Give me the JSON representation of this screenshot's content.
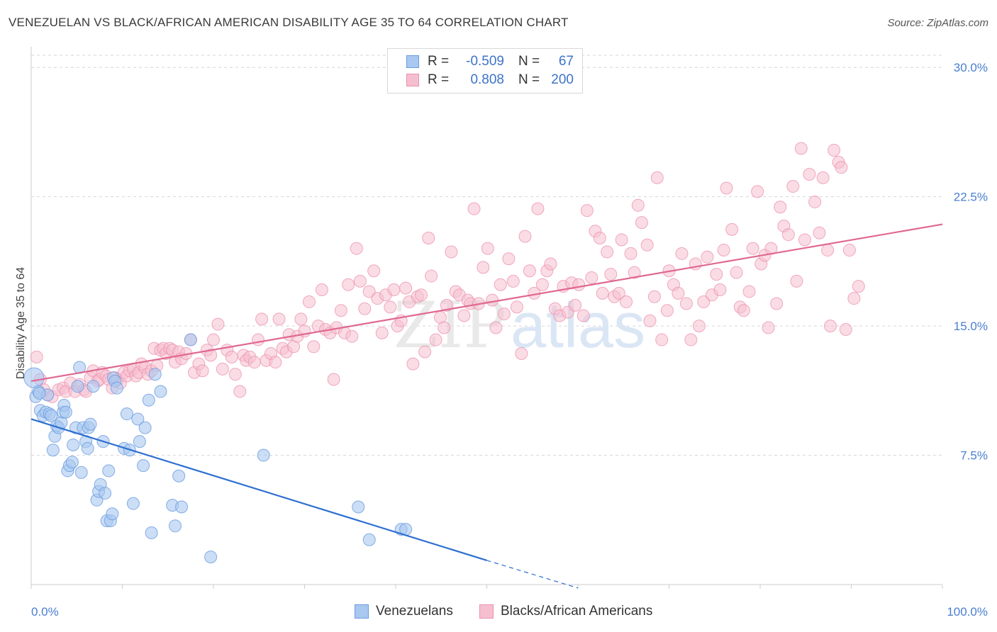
{
  "title": "VENEZUELAN VS BLACK/AFRICAN AMERICAN DISABILITY AGE 35 TO 64 CORRELATION CHART",
  "source": "Source: ZipAtlas.com",
  "watermark": "ZIPatlas",
  "legend_top": {
    "rows": [
      {
        "r_label": "R =",
        "r_value": "-0.509",
        "n_label": "N =",
        "n_value": "67"
      },
      {
        "r_label": "R =",
        "r_value": "0.808",
        "n_label": "N =",
        "n_value": "200"
      }
    ]
  },
  "legend_bottom": {
    "items": [
      "Venezuelans",
      "Blacks/African Americans"
    ]
  },
  "colors": {
    "blue_fill": "#a9c8f0",
    "blue_stroke": "#6a9be0",
    "blue_line": "#2e6fd0",
    "pink_fill": "#f6bfd0",
    "pink_stroke": "#ec8fae",
    "pink_line": "#e06890",
    "tick_text": "#4a7fd0",
    "grid": "#d6d6d6"
  },
  "chart_data": {
    "type": "scatter",
    "title": "VENEZUELAN VS BLACK/AFRICAN AMERICAN DISABILITY AGE 35 TO 64 CORRELATION CHART",
    "xlabel": "",
    "ylabel": "Disability Age 35 to 64",
    "xlim": [
      0,
      100
    ],
    "ylim": [
      0,
      31.2
    ],
    "x_tick_labels": [
      "0.0%",
      "100.0%"
    ],
    "y_ticks": [
      7.5,
      15.0,
      22.5,
      30.0
    ],
    "y_tick_labels": [
      "7.5%",
      "15.0%",
      "22.5%",
      "30.0%"
    ],
    "grid": true,
    "legend_position": "top-center",
    "series": [
      {
        "name": "Venezuelans",
        "color": "#a9c8f0",
        "R": -0.509,
        "N": 67,
        "trend": {
          "x": [
            0,
            50
          ],
          "y": [
            9.6,
            1.4
          ],
          "dashed_to": [
            60,
            -0.2
          ]
        },
        "points": [
          [
            0.3,
            12.0
          ],
          [
            0.5,
            10.9
          ],
          [
            0.8,
            11.2
          ],
          [
            1.0,
            10.1
          ],
          [
            1.3,
            9.8
          ],
          [
            1.6,
            10.0
          ],
          [
            1.8,
            11.0
          ],
          [
            2.0,
            9.9
          ],
          [
            2.2,
            9.8
          ],
          [
            2.4,
            7.8
          ],
          [
            2.6,
            8.6
          ],
          [
            2.8,
            9.2
          ],
          [
            3.0,
            9.1
          ],
          [
            3.3,
            9.4
          ],
          [
            3.5,
            10.0
          ],
          [
            3.6,
            10.4
          ],
          [
            3.8,
            10.0
          ],
          [
            4.0,
            6.6
          ],
          [
            4.2,
            6.9
          ],
          [
            4.5,
            7.1
          ],
          [
            4.6,
            8.1
          ],
          [
            4.9,
            9.1
          ],
          [
            5.1,
            11.5
          ],
          [
            5.3,
            12.6
          ],
          [
            5.5,
            6.5
          ],
          [
            5.7,
            9.1
          ],
          [
            6.0,
            8.3
          ],
          [
            6.2,
            7.9
          ],
          [
            6.3,
            9.1
          ],
          [
            6.5,
            9.3
          ],
          [
            6.8,
            11.5
          ],
          [
            7.2,
            4.9
          ],
          [
            7.4,
            5.4
          ],
          [
            7.6,
            5.8
          ],
          [
            7.9,
            8.3
          ],
          [
            8.1,
            5.3
          ],
          [
            8.3,
            3.7
          ],
          [
            8.5,
            6.6
          ],
          [
            8.7,
            3.7
          ],
          [
            8.9,
            4.1
          ],
          [
            9.0,
            12.0
          ],
          [
            9.2,
            11.8
          ],
          [
            9.4,
            11.4
          ],
          [
            10.2,
            7.9
          ],
          [
            10.5,
            9.9
          ],
          [
            10.8,
            7.8
          ],
          [
            11.2,
            4.7
          ],
          [
            11.7,
            9.6
          ],
          [
            11.9,
            8.3
          ],
          [
            12.3,
            6.9
          ],
          [
            12.5,
            9.1
          ],
          [
            12.9,
            10.7
          ],
          [
            13.2,
            3.0
          ],
          [
            13.6,
            12.2
          ],
          [
            14.2,
            11.2
          ],
          [
            15.5,
            4.6
          ],
          [
            15.8,
            3.4
          ],
          [
            16.2,
            6.3
          ],
          [
            16.5,
            4.5
          ],
          [
            17.5,
            14.2
          ],
          [
            19.7,
            1.6
          ],
          [
            25.5,
            7.5
          ],
          [
            35.9,
            4.5
          ],
          [
            37.1,
            2.6
          ],
          [
            40.6,
            3.2
          ],
          [
            41.1,
            3.2
          ],
          [
            0.9,
            11.1
          ]
        ]
      },
      {
        "name": "Blacks/African Americans",
        "color": "#f6bfd0",
        "R": 0.808,
        "N": 200,
        "trend": {
          "x": [
            0,
            100
          ],
          "y": [
            11.8,
            20.9
          ]
        },
        "points": [
          [
            0.6,
            13.2
          ],
          [
            1.0,
            11.9
          ],
          [
            1.4,
            11.3
          ],
          [
            1.8,
            11.0
          ],
          [
            2.3,
            10.9
          ],
          [
            3.0,
            11.3
          ],
          [
            3.5,
            11.4
          ],
          [
            3.8,
            11.2
          ],
          [
            4.3,
            11.7
          ],
          [
            4.8,
            11.2
          ],
          [
            5.3,
            11.6
          ],
          [
            5.8,
            11.3
          ],
          [
            6.0,
            11.2
          ],
          [
            6.5,
            12.0
          ],
          [
            6.8,
            12.4
          ],
          [
            7.3,
            11.8
          ],
          [
            7.5,
            11.9
          ],
          [
            7.8,
            12.3
          ],
          [
            8.2,
            12.1
          ],
          [
            8.5,
            11.9
          ],
          [
            8.9,
            11.4
          ],
          [
            9.2,
            12.0
          ],
          [
            9.5,
            11.9
          ],
          [
            9.8,
            11.7
          ],
          [
            10.2,
            12.3
          ],
          [
            10.5,
            12.1
          ],
          [
            10.8,
            12.4
          ],
          [
            11.2,
            12.5
          ],
          [
            11.5,
            12.1
          ],
          [
            11.8,
            12.3
          ],
          [
            12.1,
            12.8
          ],
          [
            12.5,
            12.6
          ],
          [
            12.8,
            12.2
          ],
          [
            13.2,
            12.4
          ],
          [
            13.5,
            13.7
          ],
          [
            13.8,
            12.7
          ],
          [
            14.2,
            13.6
          ],
          [
            14.5,
            13.7
          ],
          [
            14.8,
            13.4
          ],
          [
            15.2,
            13.7
          ],
          [
            15.5,
            13.6
          ],
          [
            15.8,
            12.9
          ],
          [
            16.2,
            13.5
          ],
          [
            16.5,
            13.1
          ],
          [
            17.0,
            13.4
          ],
          [
            17.5,
            14.2
          ],
          [
            17.9,
            12.3
          ],
          [
            18.4,
            12.8
          ],
          [
            18.8,
            12.4
          ],
          [
            19.3,
            13.6
          ],
          [
            19.7,
            13.3
          ],
          [
            20.0,
            14.2
          ],
          [
            20.5,
            15.1
          ],
          [
            21.0,
            12.5
          ],
          [
            21.5,
            13.6
          ],
          [
            22.0,
            13.2
          ],
          [
            22.4,
            12.2
          ],
          [
            22.9,
            11.2
          ],
          [
            23.3,
            13.3
          ],
          [
            23.6,
            13.0
          ],
          [
            24.0,
            13.2
          ],
          [
            24.5,
            12.9
          ],
          [
            24.9,
            14.2
          ],
          [
            25.3,
            15.4
          ],
          [
            25.8,
            13.0
          ],
          [
            26.3,
            13.4
          ],
          [
            26.8,
            12.9
          ],
          [
            27.2,
            15.4
          ],
          [
            27.6,
            13.7
          ],
          [
            28.0,
            13.5
          ],
          [
            28.3,
            14.5
          ],
          [
            28.8,
            13.8
          ],
          [
            29.2,
            14.4
          ],
          [
            29.6,
            15.4
          ],
          [
            30.0,
            14.7
          ],
          [
            30.5,
            16.4
          ],
          [
            31.0,
            13.8
          ],
          [
            31.5,
            15.0
          ],
          [
            31.9,
            17.1
          ],
          [
            32.3,
            14.8
          ],
          [
            32.8,
            14.6
          ],
          [
            33.2,
            11.9
          ],
          [
            33.5,
            14.9
          ],
          [
            34.0,
            15.9
          ],
          [
            34.4,
            14.6
          ],
          [
            34.8,
            17.4
          ],
          [
            35.2,
            14.4
          ],
          [
            35.7,
            19.5
          ],
          [
            36.1,
            17.6
          ],
          [
            36.6,
            16.0
          ],
          [
            37.1,
            17.0
          ],
          [
            37.6,
            18.2
          ],
          [
            38.0,
            16.6
          ],
          [
            38.5,
            14.6
          ],
          [
            38.9,
            16.8
          ],
          [
            39.4,
            16.1
          ],
          [
            39.8,
            17.1
          ],
          [
            40.2,
            15.0
          ],
          [
            40.6,
            15.3
          ],
          [
            41.1,
            17.2
          ],
          [
            41.5,
            16.4
          ],
          [
            41.9,
            12.8
          ],
          [
            42.4,
            16.7
          ],
          [
            42.8,
            16.8
          ],
          [
            43.2,
            13.5
          ],
          [
            43.6,
            20.1
          ],
          [
            43.9,
            17.9
          ],
          [
            44.4,
            14.2
          ],
          [
            44.9,
            15.5
          ],
          [
            45.3,
            14.9
          ],
          [
            45.6,
            16.2
          ],
          [
            46.1,
            19.3
          ],
          [
            46.6,
            17.0
          ],
          [
            47.0,
            16.8
          ],
          [
            47.5,
            15.6
          ],
          [
            47.9,
            16.5
          ],
          [
            48.2,
            16.3
          ],
          [
            48.6,
            21.8
          ],
          [
            49.1,
            16.3
          ],
          [
            49.6,
            18.4
          ],
          [
            50.1,
            19.5
          ],
          [
            50.6,
            16.5
          ],
          [
            51.0,
            14.9
          ],
          [
            51.5,
            17.4
          ],
          [
            51.9,
            15.7
          ],
          [
            52.4,
            18.9
          ],
          [
            52.9,
            17.6
          ],
          [
            53.3,
            16.1
          ],
          [
            53.8,
            13.4
          ],
          [
            54.2,
            20.2
          ],
          [
            54.7,
            18.2
          ],
          [
            55.2,
            16.9
          ],
          [
            55.6,
            21.8
          ],
          [
            56.1,
            17.4
          ],
          [
            56.6,
            18.2
          ],
          [
            57.0,
            18.6
          ],
          [
            57.5,
            16.0
          ],
          [
            58.0,
            15.6
          ],
          [
            58.4,
            17.3
          ],
          [
            58.9,
            15.8
          ],
          [
            59.3,
            17.5
          ],
          [
            59.7,
            16.2
          ],
          [
            60.1,
            17.4
          ],
          [
            60.6,
            15.6
          ],
          [
            61.0,
            21.7
          ],
          [
            61.5,
            17.8
          ],
          [
            61.9,
            20.5
          ],
          [
            62.4,
            20.1
          ],
          [
            62.7,
            16.9
          ],
          [
            63.2,
            19.3
          ],
          [
            63.6,
            18.0
          ],
          [
            64.0,
            16.7
          ],
          [
            64.5,
            16.9
          ],
          [
            64.8,
            20.0
          ],
          [
            65.3,
            16.4
          ],
          [
            65.8,
            19.2
          ],
          [
            66.2,
            18.1
          ],
          [
            66.6,
            22.0
          ],
          [
            67.0,
            21.0
          ],
          [
            67.6,
            19.7
          ],
          [
            67.9,
            15.3
          ],
          [
            68.4,
            16.7
          ],
          [
            68.7,
            23.6
          ],
          [
            69.2,
            14.2
          ],
          [
            69.8,
            15.9
          ],
          [
            70.0,
            18.2
          ],
          [
            70.5,
            17.4
          ],
          [
            71.0,
            16.9
          ],
          [
            71.4,
            19.2
          ],
          [
            71.9,
            16.3
          ],
          [
            72.4,
            14.2
          ],
          [
            72.9,
            18.6
          ],
          [
            73.3,
            15.0
          ],
          [
            73.8,
            16.4
          ],
          [
            74.2,
            19.0
          ],
          [
            74.7,
            16.8
          ],
          [
            75.2,
            18.0
          ],
          [
            75.6,
            17.1
          ],
          [
            76.0,
            19.4
          ],
          [
            76.3,
            23.0
          ],
          [
            76.9,
            20.6
          ],
          [
            77.4,
            18.1
          ],
          [
            77.8,
            16.1
          ],
          [
            78.2,
            15.9
          ],
          [
            78.8,
            17.0
          ],
          [
            79.2,
            19.5
          ],
          [
            79.7,
            22.8
          ],
          [
            80.1,
            18.6
          ],
          [
            80.5,
            19.1
          ],
          [
            80.9,
            14.9
          ],
          [
            81.2,
            19.5
          ],
          [
            81.8,
            16.3
          ],
          [
            82.2,
            21.9
          ],
          [
            82.6,
            20.8
          ],
          [
            83.1,
            20.3
          ],
          [
            83.6,
            23.1
          ],
          [
            84.0,
            17.6
          ],
          [
            84.5,
            25.3
          ],
          [
            84.9,
            20.0
          ],
          [
            85.4,
            23.8
          ],
          [
            86.0,
            22.2
          ],
          [
            86.5,
            20.4
          ],
          [
            86.9,
            23.6
          ],
          [
            87.4,
            19.4
          ],
          [
            87.7,
            15.0
          ],
          [
            88.1,
            25.2
          ],
          [
            88.6,
            24.5
          ],
          [
            88.9,
            24.2
          ],
          [
            89.4,
            14.8
          ],
          [
            89.8,
            19.4
          ],
          [
            90.3,
            16.6
          ],
          [
            90.8,
            17.3
          ]
        ]
      }
    ]
  }
}
